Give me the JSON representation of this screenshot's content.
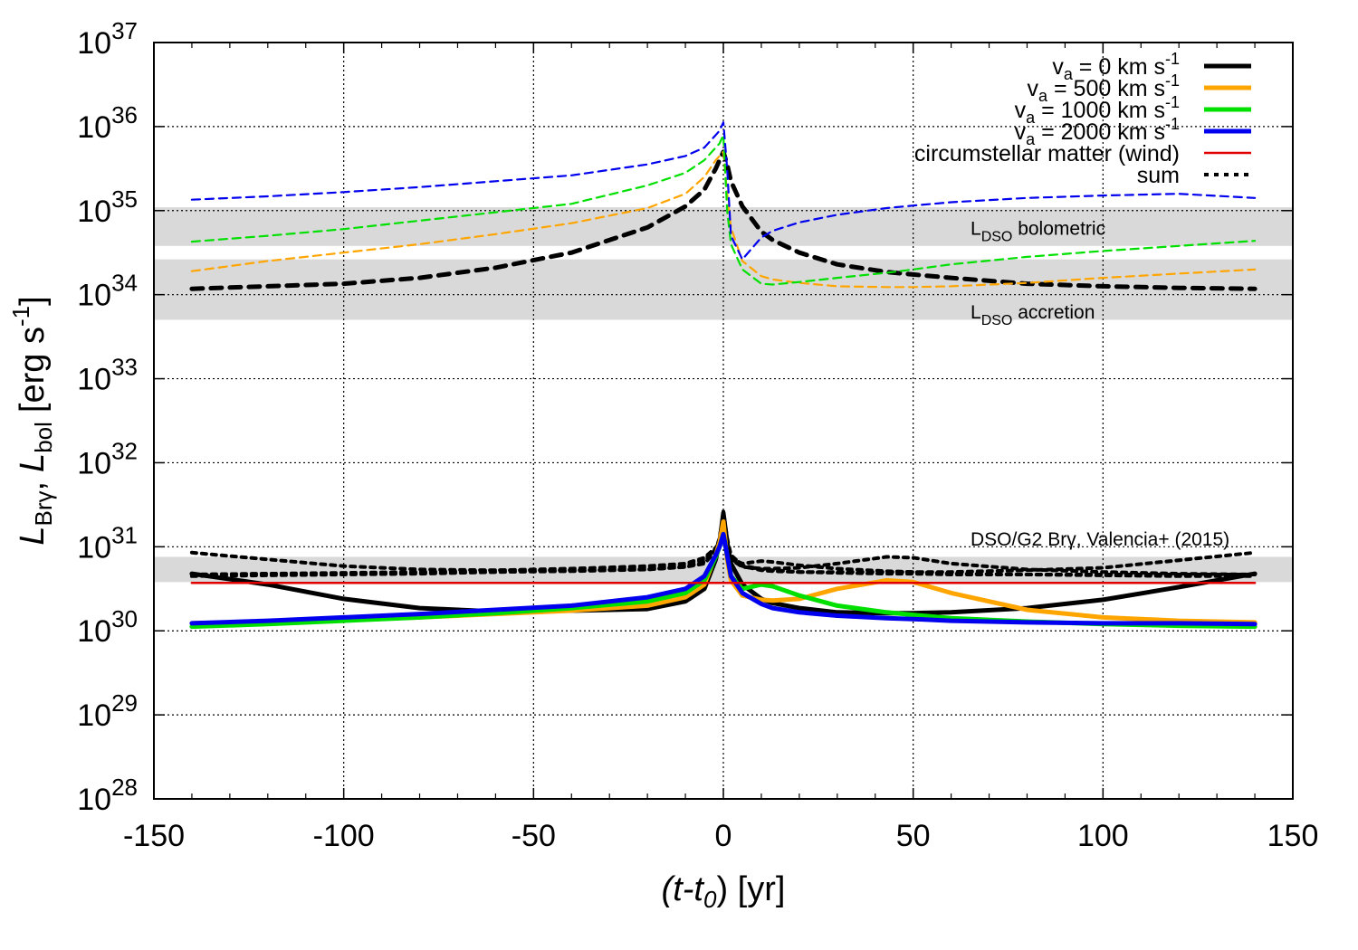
{
  "chart_data": {
    "type": "line",
    "title": "",
    "xlabel": "(t-t0)  [yr]",
    "ylabel": "L_Brγ, L_bol [erg s^-1]",
    "x_label_parts": {
      "open": "(t-t",
      "sub": "0",
      "close": ")  [yr]"
    },
    "y_label_parts": {
      "l1": "L",
      "sub1": "Brγ",
      "comma1": ",",
      "l2": "L",
      "sub2": "bol",
      "unit": "[erg s",
      "unit_sup": "-1",
      "unit_close": "]"
    },
    "xlim": [
      -150,
      150
    ],
    "ylim_log10": [
      28,
      37
    ],
    "x_ticks": [
      -150,
      -100,
      -50,
      0,
      50,
      100,
      150
    ],
    "x_tick_labels": [
      "-150",
      "-100",
      "-50",
      "0",
      "50",
      "100",
      "150"
    ],
    "y_ticks_log10": [
      28,
      29,
      30,
      31,
      32,
      33,
      34,
      35,
      36,
      37
    ],
    "y_tick_base": "10",
    "y_tick_exponents": [
      "28",
      "29",
      "30",
      "31",
      "32",
      "33",
      "34",
      "35",
      "36",
      "37"
    ],
    "grid": true,
    "legend_position": "top-right",
    "legend": [
      {
        "pre": "v",
        "sub": "a",
        "label": " = 0 km s",
        "sup": "-1",
        "color": "#000000",
        "style": "solid"
      },
      {
        "pre": "v",
        "sub": "a",
        "label": " = 500 km s",
        "sup": "-1",
        "color": "#ffa500",
        "style": "solid"
      },
      {
        "pre": "v",
        "sub": "a",
        "label": " = 1000 km s",
        "sup": "-1",
        "color": "#00e000",
        "style": "solid"
      },
      {
        "pre": "v",
        "sub": "a",
        "label": " = 2000 km s",
        "sup": "-1",
        "color": "#0000ee",
        "style": "solid"
      },
      {
        "pre": "",
        "sub": "",
        "label": "circumstellar matter (wind)",
        "sup": "",
        "color": "#e00000",
        "style": "solid"
      },
      {
        "pre": "",
        "sub": "",
        "label": "sum",
        "sup": "",
        "color": "#000000",
        "style": "dotted"
      }
    ],
    "bands": [
      {
        "name": "L_DSO bolometric",
        "ylog_range": [
          34.58,
          35.04
        ],
        "label_main": "L",
        "label_sub": "DSO",
        "label_rest": " bolometric"
      },
      {
        "name": "L_DSO accretion",
        "ylog_range": [
          33.7,
          34.42
        ],
        "label_main": "L",
        "label_sub": "DSO",
        "label_rest": " accretion"
      },
      {
        "name": "DSO/G2 Brγ, Valencia+ (2015)",
        "ylog_range": [
          30.58,
          30.88
        ],
        "label_main": "DSO/G2 Brγ, Valencia+ (2015)",
        "label_sub": "",
        "label_rest": ""
      }
    ],
    "x_samples": [
      -140,
      -120,
      -100,
      -80,
      -60,
      -40,
      -20,
      -10,
      -5,
      -2,
      -1,
      0,
      1,
      2,
      5,
      10,
      13,
      20,
      30,
      43,
      50,
      60,
      80,
      100,
      120,
      140
    ],
    "series": [
      {
        "name": "bol v_a=0",
        "color": "#000000",
        "style": "dashed-thick",
        "ylog": [
          34.07,
          34.1,
          34.13,
          34.2,
          34.32,
          34.5,
          34.8,
          35.05,
          35.25,
          35.5,
          35.6,
          35.7,
          35.55,
          35.35,
          35.05,
          34.75,
          34.65,
          34.5,
          34.36,
          34.27,
          34.24,
          34.2,
          34.13,
          34.1,
          34.08,
          34.07
        ]
      },
      {
        "name": "bol v_a=500",
        "color": "#ffa500",
        "style": "dashed",
        "ylog": [
          34.28,
          34.4,
          34.5,
          34.6,
          34.72,
          34.85,
          35.03,
          35.2,
          35.4,
          35.6,
          35.65,
          35.7,
          35.2,
          34.8,
          34.4,
          34.22,
          34.18,
          34.14,
          34.1,
          34.09,
          34.09,
          34.1,
          34.14,
          34.2,
          34.25,
          34.3
        ]
      },
      {
        "name": "bol v_a=1000",
        "color": "#00e000",
        "style": "dashed",
        "ylog": [
          34.63,
          34.7,
          34.78,
          34.88,
          34.98,
          35.08,
          35.3,
          35.45,
          35.6,
          35.75,
          35.8,
          35.9,
          35.0,
          34.6,
          34.3,
          34.13,
          34.12,
          34.15,
          34.2,
          34.26,
          34.3,
          34.36,
          34.45,
          34.52,
          34.58,
          34.64
        ]
      },
      {
        "name": "bol v_a=2000",
        "color": "#0000ee",
        "style": "dashed",
        "ylog": [
          35.13,
          35.17,
          35.22,
          35.28,
          35.35,
          35.42,
          35.55,
          35.65,
          35.75,
          35.9,
          35.95,
          36.05,
          35.5,
          34.7,
          34.42,
          34.68,
          34.76,
          34.86,
          34.95,
          35.03,
          35.06,
          35.1,
          35.15,
          35.18,
          35.2,
          35.15
        ]
      },
      {
        "name": "Brγ v_a=0",
        "color": "#000000",
        "style": "solid",
        "ylog": [
          30.68,
          30.55,
          30.38,
          30.27,
          30.23,
          30.24,
          30.26,
          30.35,
          30.5,
          30.85,
          31.05,
          31.4,
          31.05,
          30.8,
          30.55,
          30.38,
          30.33,
          30.27,
          30.22,
          30.21,
          30.21,
          30.22,
          30.27,
          30.37,
          30.52,
          30.68
        ]
      },
      {
        "name": "Brγ v_a=500",
        "color": "#ffa500",
        "style": "solid",
        "ylog": [
          30.09,
          30.11,
          30.13,
          30.16,
          30.2,
          30.24,
          30.3,
          30.4,
          30.55,
          30.9,
          31.05,
          31.3,
          30.85,
          30.6,
          30.42,
          30.37,
          30.36,
          30.38,
          30.5,
          30.6,
          30.58,
          30.45,
          30.25,
          30.16,
          30.12,
          30.1
        ]
      },
      {
        "name": "Brγ v_a=1000",
        "color": "#00e000",
        "style": "solid",
        "ylog": [
          30.05,
          30.08,
          30.12,
          30.16,
          30.21,
          30.27,
          30.35,
          30.45,
          30.6,
          30.88,
          31.0,
          31.15,
          30.9,
          30.65,
          30.5,
          30.55,
          30.53,
          30.42,
          30.3,
          30.22,
          30.19,
          30.15,
          30.11,
          30.08,
          30.06,
          30.05
        ]
      },
      {
        "name": "Brγ v_a=2000",
        "color": "#0000ee",
        "style": "solid",
        "ylog": [
          30.09,
          30.12,
          30.16,
          30.2,
          30.25,
          30.3,
          30.4,
          30.5,
          30.65,
          30.9,
          31.0,
          31.15,
          30.9,
          30.65,
          30.45,
          30.32,
          30.27,
          30.22,
          30.18,
          30.15,
          30.14,
          30.12,
          30.1,
          30.09,
          30.09,
          30.08
        ]
      },
      {
        "name": "circumstellar matter (wind)",
        "color": "#e00000",
        "style": "solid-red",
        "ylog": [
          30.57,
          30.57,
          30.57,
          30.57,
          30.57,
          30.57,
          30.57,
          30.57,
          30.57,
          30.57,
          30.57,
          30.57,
          30.57,
          30.57,
          30.57,
          30.57,
          30.57,
          30.57,
          30.57,
          30.57,
          30.57,
          30.57,
          30.57,
          30.57,
          30.57,
          30.57
        ]
      },
      {
        "name": "sum v_a=0",
        "color": "#000000",
        "style": "dotted",
        "ylog": [
          30.93,
          30.85,
          30.77,
          30.73,
          30.72,
          30.72,
          30.73,
          30.76,
          30.8,
          30.95,
          31.1,
          31.42,
          31.1,
          30.9,
          30.78,
          30.73,
          30.72,
          30.7,
          30.7,
          30.7,
          30.7,
          30.7,
          30.72,
          30.75,
          30.84,
          30.93
        ]
      },
      {
        "name": "sum v_a=500",
        "color": "#000000",
        "style": "dotted",
        "ylog": [
          30.67,
          30.68,
          30.68,
          30.69,
          30.7,
          30.71,
          30.73,
          30.76,
          30.82,
          30.97,
          31.1,
          31.32,
          30.98,
          30.85,
          30.76,
          30.74,
          30.74,
          30.75,
          30.8,
          30.88,
          30.87,
          30.8,
          30.73,
          30.7,
          30.68,
          30.67
        ]
      },
      {
        "name": "sum v_a=1000",
        "color": "#000000",
        "style": "dotted",
        "ylog": [
          30.65,
          30.66,
          30.67,
          30.68,
          30.7,
          30.72,
          30.75,
          30.78,
          30.85,
          30.98,
          31.05,
          31.2,
          30.98,
          30.86,
          30.8,
          30.83,
          30.82,
          30.78,
          30.74,
          30.71,
          30.7,
          30.68,
          30.67,
          30.66,
          30.65,
          30.65
        ]
      },
      {
        "name": "sum v_a=2000",
        "color": "#000000",
        "style": "dotted",
        "ylog": [
          30.67,
          30.68,
          30.69,
          30.7,
          30.72,
          30.74,
          30.77,
          30.8,
          30.87,
          30.99,
          31.05,
          31.2,
          30.98,
          30.86,
          30.77,
          30.72,
          30.71,
          30.7,
          30.69,
          30.68,
          30.68,
          30.67,
          30.67,
          30.67,
          30.67,
          30.67
        ]
      }
    ]
  }
}
